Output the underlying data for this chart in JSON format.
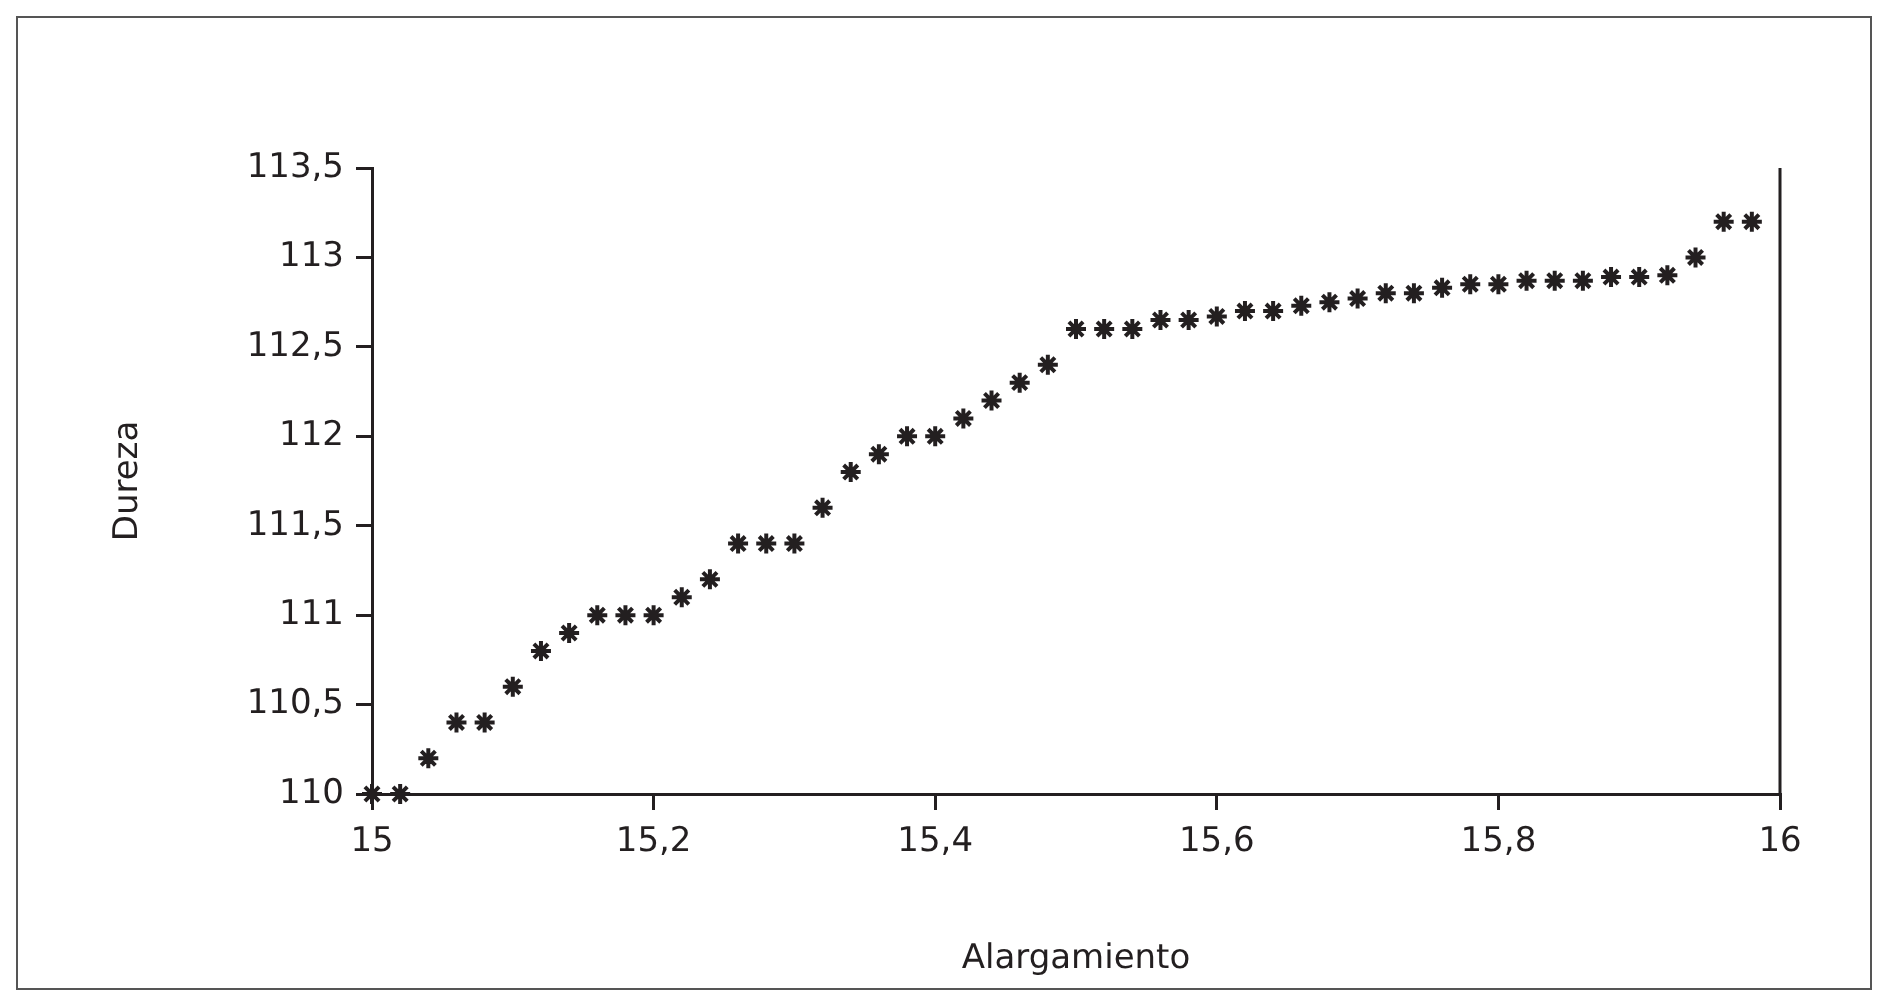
{
  "chart_data": {
    "type": "scatter",
    "xlabel": "Alargamiento",
    "ylabel": "Dureza",
    "marker": "cross",
    "grid": false,
    "legend": false,
    "xlim": [
      15,
      16
    ],
    "xticks": [
      15,
      {
        "value": 15.2,
        "label": "15,2"
      },
      {
        "value": 15.4,
        "label": "15,4"
      },
      {
        "value": 15.6,
        "label": "15,6"
      },
      {
        "value": 15.8,
        "label": "15,8"
      },
      16
    ],
    "ylim": [
      110,
      113.5
    ],
    "yticks": [
      110,
      {
        "value": 110.5,
        "label": "110,5"
      },
      111,
      {
        "value": 111.5,
        "label": "111,5"
      },
      112,
      {
        "value": 112.5,
        "label": "112,5"
      },
      113,
      {
        "value": 113.5,
        "label": "113,5"
      }
    ],
    "series": [
      {
        "color": "#231f20",
        "x": [
          15,
          15.02,
          15.04,
          15.06,
          15.08,
          15.1,
          15.12,
          15.14,
          15.16,
          15.18,
          15.2,
          15.22,
          15.24,
          15.26,
          15.28,
          15.3,
          15.32,
          15.34,
          15.36,
          15.38,
          15.4,
          15.42,
          15.44,
          15.46,
          15.48,
          15.5,
          15.52,
          15.54,
          15.56,
          15.58,
          15.6,
          15.62,
          15.64,
          15.66,
          15.68,
          15.7,
          15.72,
          15.74,
          15.76,
          15.78,
          15.8,
          15.82,
          15.84,
          15.86,
          15.88,
          15.9,
          15.92,
          15.94,
          15.96,
          15.98
        ],
        "values": [
          110,
          110,
          110.2,
          110.4,
          110.4,
          110.6,
          110.8,
          110.9,
          111,
          111,
          111,
          111.1,
          111.2,
          111.4,
          111.4,
          111.4,
          111.6,
          111.8,
          111.9,
          112,
          112,
          112.1,
          112.2,
          112.3,
          112.4,
          112.6,
          112.6,
          112.6,
          112.65,
          112.65,
          112.67,
          112.7,
          112.7,
          112.73,
          112.75,
          112.77,
          112.8,
          112.8,
          112.83,
          112.85,
          112.85,
          112.87,
          112.87,
          112.87,
          112.89,
          112.89,
          112.9,
          113,
          113.2,
          113.2
        ]
      }
    ]
  }
}
